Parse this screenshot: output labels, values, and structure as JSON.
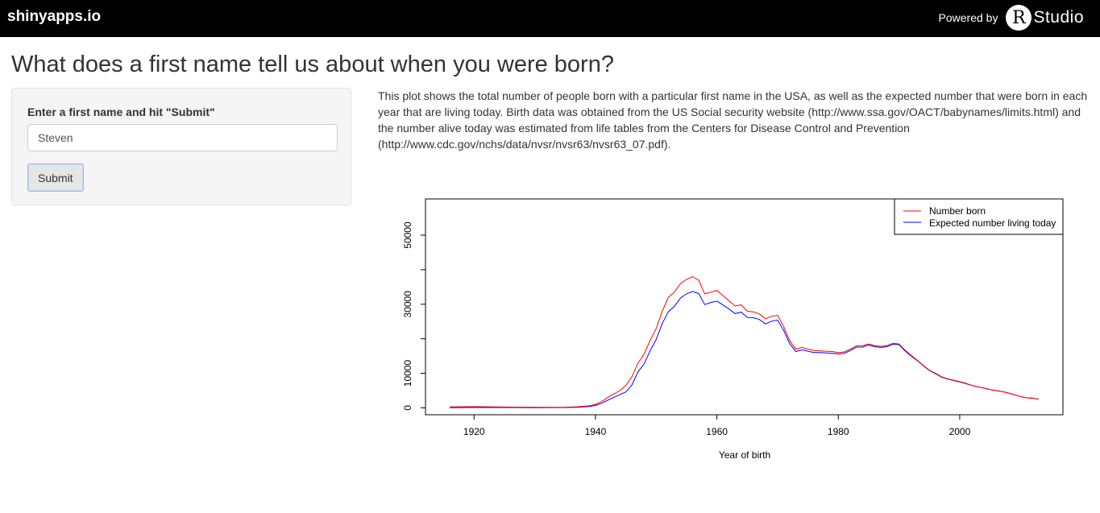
{
  "header": {
    "brand": "shinyapps.io",
    "powered_by": "Powered by",
    "logo_letter": "R",
    "logo_word": "Studio"
  },
  "page": {
    "title": "What does a first name tell us about when you were born?"
  },
  "form": {
    "label": "Enter a first name and hit \"Submit\"",
    "name_value": "Steven",
    "submit_label": "Submit"
  },
  "description": "This plot shows the total number of people born with a particular first name in the USA, as well as the expected number that were born in each year that are living today. Birth data was obtained from the US Social security website (http://www.ssa.gov/OACT/babynames/limits.html) and the number alive today was estimated from life tables from the Centers for Disease Control and Prevention (http://www.cdc.gov/nchs/data/nvsr/nvsr63/nvsr63_07.pdf).",
  "chart_data": {
    "type": "line",
    "title": "",
    "xlabel": "Year of birth",
    "ylabel": "",
    "xlim": [
      1912,
      2017
    ],
    "ylim": [
      -2000,
      60500
    ],
    "x_ticks": [
      1920,
      1940,
      1960,
      1980,
      2000
    ],
    "y_ticks": [
      0,
      10000,
      20000,
      30000,
      40000,
      50000
    ],
    "y_tick_labels": [
      "0",
      "10000",
      "30000",
      "50000"
    ],
    "y_labeled_ticks": [
      0,
      10000,
      30000,
      50000
    ],
    "grid": false,
    "legend_position": "top-right",
    "x": [
      1916,
      1920,
      1925,
      1930,
      1935,
      1937,
      1939,
      1940,
      1941,
      1942,
      1943,
      1944,
      1945,
      1946,
      1947,
      1948,
      1949,
      1950,
      1951,
      1952,
      1953,
      1954,
      1955,
      1956,
      1957,
      1958,
      1959,
      1960,
      1961,
      1962,
      1963,
      1964,
      1965,
      1966,
      1967,
      1968,
      1969,
      1970,
      1971,
      1972,
      1973,
      1974,
      1975,
      1976,
      1977,
      1978,
      1979,
      1980,
      1981,
      1982,
      1983,
      1984,
      1985,
      1986,
      1987,
      1988,
      1989,
      1990,
      1991,
      1992,
      1993,
      1994,
      1995,
      1996,
      1997,
      1998,
      1999,
      2000,
      2001,
      2002,
      2003,
      2004,
      2005,
      2006,
      2007,
      2008,
      2009,
      2010,
      2011,
      2012,
      2013
    ],
    "series": [
      {
        "name": "Number born",
        "color": "#ff0000",
        "values": [
          300,
          350,
          250,
          150,
          200,
          300,
          600,
          1000,
          1800,
          3000,
          4000,
          5000,
          6500,
          9000,
          13000,
          15500,
          19500,
          23000,
          28000,
          32000,
          33500,
          36000,
          37200,
          38000,
          37000,
          33000,
          33500,
          34000,
          32500,
          31000,
          29500,
          29800,
          28000,
          27800,
          27200,
          25800,
          26500,
          26800,
          23500,
          19500,
          17000,
          17500,
          17000,
          16600,
          16500,
          16400,
          16300,
          16000,
          16200,
          17000,
          18000,
          18000,
          18500,
          18000,
          17800,
          18000,
          18700,
          18500,
          16700,
          15200,
          13800,
          12300,
          10900,
          10000,
          9000,
          8400,
          8000,
          7600,
          7100,
          6500,
          6100,
          5700,
          5300,
          5000,
          4700,
          4300,
          3800,
          3300,
          2900,
          2800,
          2500
        ]
      },
      {
        "name": "Expected number living today",
        "color": "#0000ff",
        "values": [
          50,
          100,
          100,
          50,
          100,
          150,
          400,
          700,
          1300,
          2200,
          3000,
          3800,
          4600,
          6600,
          10400,
          12700,
          16500,
          19800,
          24400,
          27800,
          29400,
          31800,
          33000,
          33700,
          33100,
          29900,
          30500,
          30900,
          29800,
          28600,
          27300,
          27700,
          26200,
          26100,
          25600,
          24300,
          25100,
          25400,
          22400,
          18600,
          16300,
          16800,
          16400,
          16000,
          16000,
          15900,
          15800,
          15600,
          15800,
          16600,
          17600,
          17600,
          18200,
          17700,
          17500,
          17700,
          18400,
          18300,
          16500,
          15000,
          13700,
          12200,
          10800,
          9900,
          8900,
          8300,
          7900,
          7500,
          7000,
          6500,
          6100,
          5700,
          5300,
          5000,
          4700,
          4300,
          3800,
          3300,
          2900,
          2800,
          2500
        ]
      }
    ]
  }
}
